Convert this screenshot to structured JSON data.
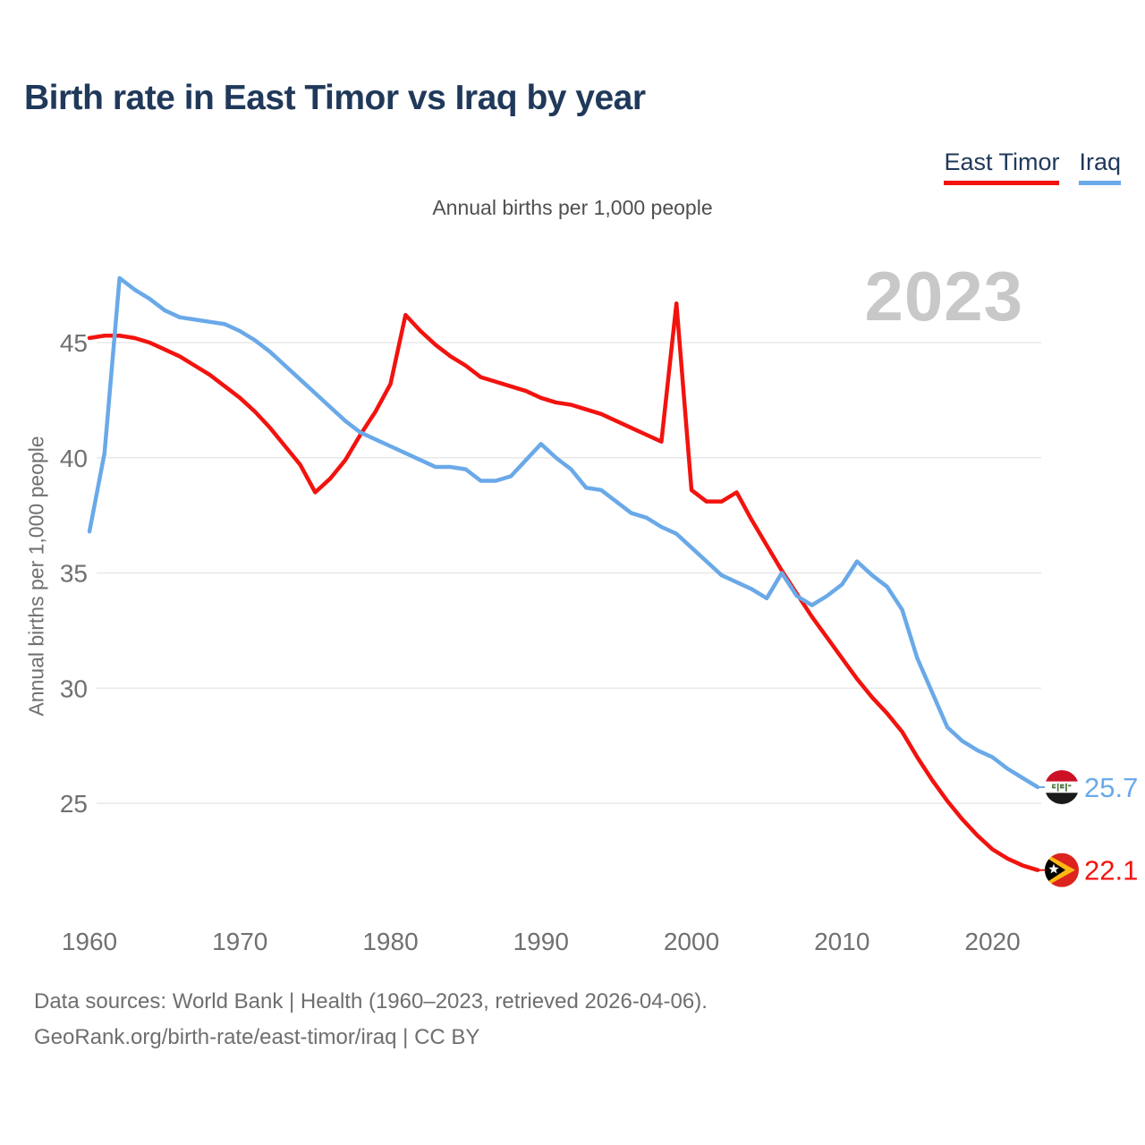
{
  "title": "Birth rate in East Timor vs Iraq by year",
  "subtitle": "Annual births per 1,000 people",
  "watermark": "2023",
  "legend": [
    {
      "label": "East Timor",
      "color": "#f2130e"
    },
    {
      "label": "Iraq",
      "color": "#6aa9e8"
    }
  ],
  "y_axis": {
    "label": "Annual births per 1,000 people",
    "ticks": [
      45,
      40,
      35,
      30,
      25
    ]
  },
  "x_axis": {
    "ticks": [
      1960,
      1970,
      1980,
      1990,
      2000,
      2010,
      2020
    ]
  },
  "end_labels": [
    {
      "series": "Iraq",
      "value": "25.7",
      "flag": "iraq-flag",
      "color": "#6aa9e8"
    },
    {
      "series": "East Timor",
      "value": "22.1",
      "flag": "east-timor-flag",
      "color": "#f2130e"
    }
  ],
  "footer": {
    "line1": "Data sources: World Bank | Health (1960–2023, retrieved 2026-04-06).",
    "line2": "GeoRank.org/birth-rate/east-timor/iraq | CC BY"
  },
  "chart_data": {
    "type": "line",
    "title": "Birth rate in East Timor vs Iraq by year",
    "ylabel": "Annual births per 1,000 people",
    "x": [
      1960,
      1961,
      1962,
      1963,
      1964,
      1965,
      1966,
      1967,
      1968,
      1969,
      1970,
      1971,
      1972,
      1973,
      1974,
      1975,
      1976,
      1977,
      1978,
      1979,
      1980,
      1981,
      1982,
      1983,
      1984,
      1985,
      1986,
      1987,
      1988,
      1989,
      1990,
      1991,
      1992,
      1993,
      1994,
      1995,
      1996,
      1997,
      1998,
      1999,
      2000,
      2001,
      2002,
      2003,
      2004,
      2005,
      2006,
      2007,
      2008,
      2009,
      2010,
      2011,
      2012,
      2013,
      2014,
      2015,
      2016,
      2017,
      2018,
      2019,
      2020,
      2021,
      2022,
      2023
    ],
    "series": [
      {
        "name": "East Timor",
        "color": "#f2130e",
        "values": [
          45.2,
          45.3,
          45.3,
          45.2,
          45.0,
          44.7,
          44.4,
          44.0,
          43.6,
          43.1,
          42.6,
          42.0,
          41.3,
          40.5,
          39.7,
          38.5,
          39.1,
          39.9,
          41.0,
          42.0,
          43.2,
          46.2,
          45.5,
          44.9,
          44.4,
          44.0,
          43.5,
          43.3,
          43.1,
          42.9,
          42.6,
          42.4,
          42.3,
          42.1,
          41.9,
          41.6,
          41.3,
          41.0,
          40.7,
          46.7,
          38.6,
          38.1,
          38.1,
          38.5,
          37.3,
          36.2,
          35.1,
          34.1,
          33.1,
          32.2,
          31.3,
          30.4,
          29.6,
          28.9,
          28.1,
          27.0,
          26.0,
          25.1,
          24.3,
          23.6,
          23.0,
          22.6,
          22.3,
          22.1
        ]
      },
      {
        "name": "Iraq",
        "color": "#6aa9e8",
        "values": [
          36.8,
          40.2,
          47.8,
          47.3,
          46.9,
          46.4,
          46.1,
          46.0,
          45.9,
          45.8,
          45.5,
          45.1,
          44.6,
          44.0,
          43.4,
          42.8,
          42.2,
          41.6,
          41.1,
          40.8,
          40.5,
          40.2,
          39.9,
          39.6,
          39.6,
          39.5,
          39.0,
          39.0,
          39.2,
          39.9,
          40.6,
          40.0,
          39.5,
          38.7,
          38.6,
          38.1,
          37.6,
          37.4,
          37.0,
          36.7,
          36.1,
          35.5,
          34.9,
          34.6,
          34.3,
          33.9,
          35.0,
          34.0,
          33.6,
          34.0,
          34.5,
          35.5,
          34.9,
          34.4,
          33.4,
          31.3,
          29.8,
          28.3,
          27.7,
          27.3,
          27.0,
          26.5,
          26.1,
          25.7
        ]
      }
    ],
    "yticks": [
      25,
      30,
      35,
      40,
      45
    ],
    "xticks": [
      1960,
      1970,
      1980,
      1990,
      2000,
      2010,
      2020
    ],
    "ylim": [
      21.5,
      48.5
    ],
    "grid": "horizontal",
    "legend_position": "top-right",
    "end_value_labels": {
      "Iraq": 25.7,
      "East Timor": 22.1
    }
  }
}
